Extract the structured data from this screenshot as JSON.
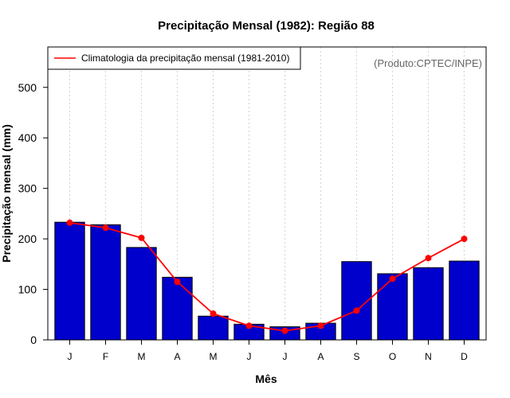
{
  "colors": {
    "bar_fill": "#0000CC",
    "bar_stroke": "#000000",
    "line": "#FF0000",
    "grid": "#D3D3D3",
    "credit": "#666666"
  },
  "chart_data": {
    "type": "bar",
    "title": "Precipitação Mensal (1982): Região 88",
    "xlabel": "Mês",
    "ylabel": "Precipitação mensal (mm)",
    "ylim": [
      0,
      580
    ],
    "yticks": [
      0,
      100,
      200,
      300,
      400,
      500
    ],
    "grid": "vertical dotted",
    "categories": [
      "J",
      "F",
      "M",
      "A",
      "M",
      "J",
      "J",
      "A",
      "S",
      "O",
      "N",
      "D"
    ],
    "series": [
      {
        "name": "Precipitação mensal (1982)",
        "kind": "bar",
        "values": [
          233,
          228,
          183,
          124,
          47,
          31,
          26,
          33,
          155,
          131,
          143,
          156
        ]
      },
      {
        "name": "Climatologia da precipitação mensal (1981-2010)",
        "kind": "line",
        "values": [
          232,
          222,
          202,
          115,
          52,
          28,
          18,
          28,
          58,
          121,
          162,
          200
        ]
      }
    ],
    "legend": {
      "position": "top-left",
      "entries": [
        "Climatologia da precipitação mensal (1981-2010)"
      ]
    },
    "annotation": "(Produto:CPTEC/INPE)"
  }
}
